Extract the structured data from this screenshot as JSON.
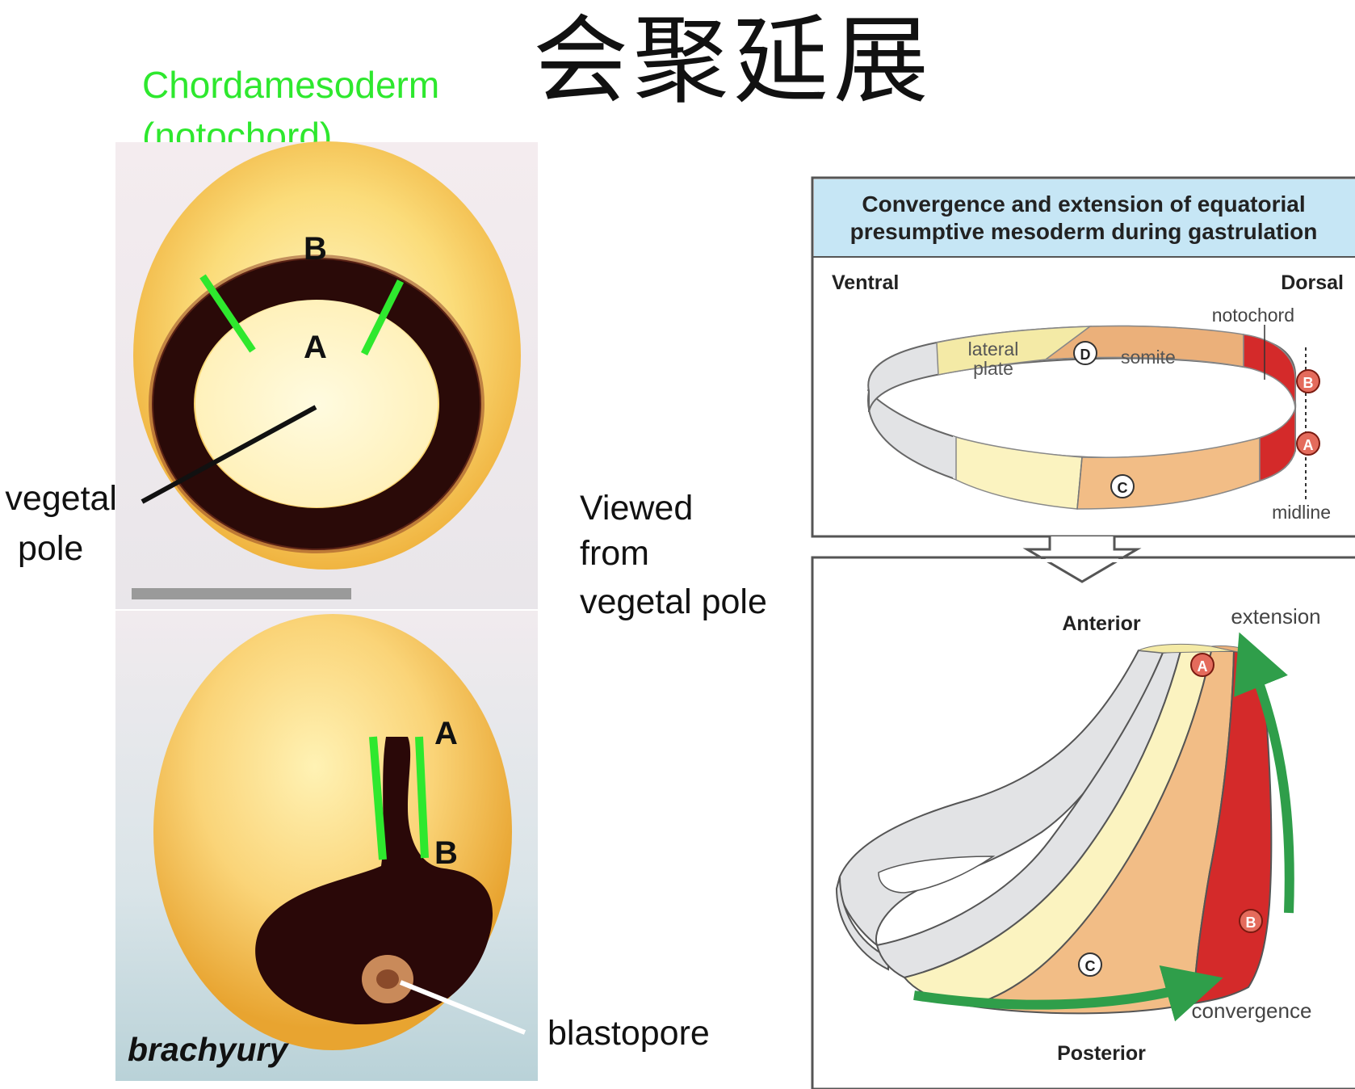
{
  "title": "会聚延展",
  "left_figure": {
    "chordamesoderm_line1": "Chordamesoderm",
    "chordamesoderm_line2": "(notochord)",
    "top_label_B": "B",
    "top_label_A": "A",
    "vegetal_line1": "vegetal",
    "vegetal_line2": "pole",
    "bottom_label_A": "A",
    "bottom_label_B": "B",
    "gene_label": "brachyury",
    "blastopore_label": "blastopore",
    "viewed_line1": "Viewed",
    "viewed_line2": "from",
    "viewed_line3": "vegetal pole"
  },
  "right_figure": {
    "box_title_line1": "Convergence and extension of equatorial",
    "box_title_line2": "presumptive mesoderm during gastrulation",
    "ventral": "Ventral",
    "dorsal": "Dorsal",
    "notochord": "notochord",
    "lateral_line1": "lateral",
    "lateral_line2": "plate",
    "somite": "somite",
    "midline": "midline",
    "marker_A": "A",
    "marker_B": "B",
    "marker_C": "C",
    "marker_D": "D",
    "anterior": "Anterior",
    "posterior": "Posterior",
    "extension": "extension",
    "convergence": "convergence"
  },
  "colors": {
    "green": "#2ee82e",
    "title_bar": "#c6e6f5",
    "notochord_red": "#d42a2a",
    "somite_orange": "#ebb07a",
    "lateral_yellow": "#f4eaa6",
    "ventral_gray": "#e2e3e5",
    "arrow_green": "#2f9e4a"
  }
}
